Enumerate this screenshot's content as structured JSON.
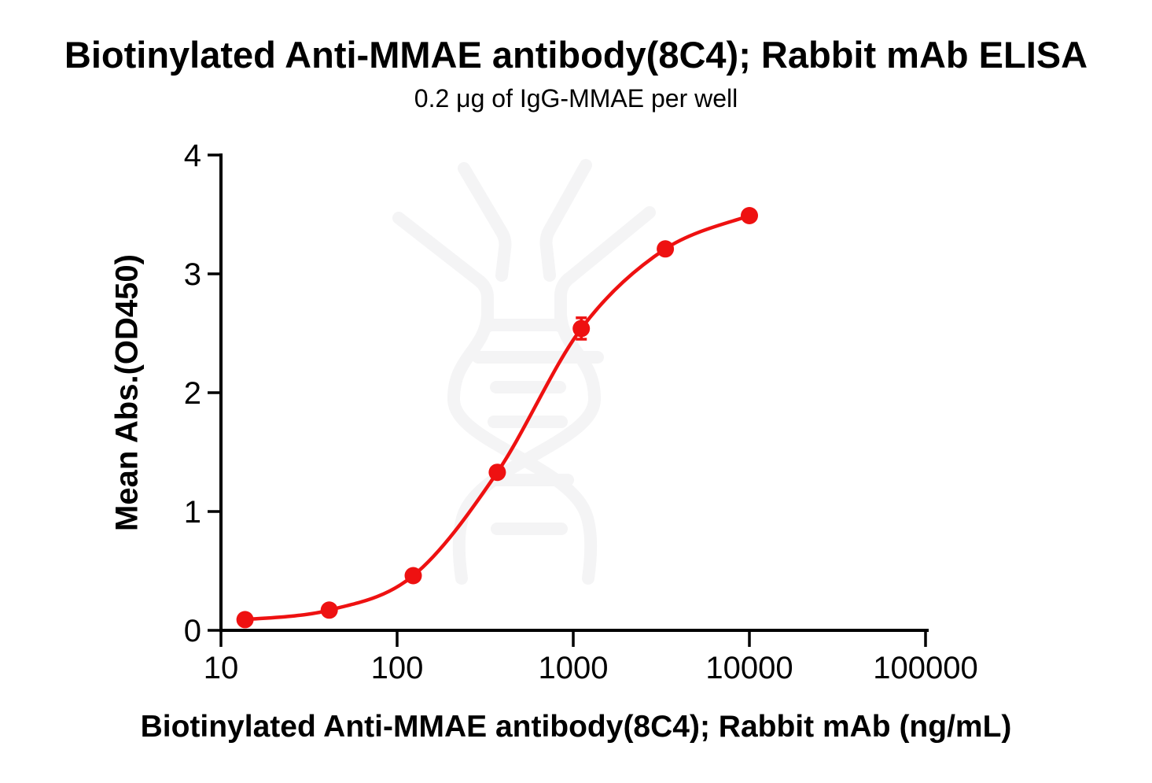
{
  "chart_data": {
    "type": "line",
    "title": "Biotinylated Anti-MMAE antibody(8C4); Rabbit mAb ELISA",
    "subtitle": "0.2 μg of IgG-MMAE per well",
    "xlabel": "Biotinylated Anti-MMAE antibody(8C4); Rabbit mAb (ng/mL)",
    "ylabel": "Mean Abs.(OD450)",
    "x_scale": "log10",
    "xlim": [
      10,
      100000
    ],
    "ylim": [
      0,
      4
    ],
    "x_ticks": [
      "10",
      "100",
      "1000",
      "10000",
      "100000"
    ],
    "y_ticks": [
      "0",
      "1",
      "2",
      "3",
      "4"
    ],
    "grid": false,
    "legend": false,
    "series": [
      {
        "name": "Biotinylated Anti-MMAE antibody(8C4); Rabbit mAb",
        "color": "#ee1111",
        "marker": "circle",
        "curve": "sigmoidal-4PL-fit",
        "points": [
          {
            "x": 13.7,
            "y": 0.09
          },
          {
            "x": 41.2,
            "y": 0.17
          },
          {
            "x": 123.5,
            "y": 0.46
          },
          {
            "x": 370.4,
            "y": 1.33
          },
          {
            "x": 1111,
            "y": 2.54,
            "sd": 0.09
          },
          {
            "x": 3333,
            "y": 3.21
          },
          {
            "x": 10000,
            "y": 3.49
          }
        ]
      }
    ]
  },
  "watermark": {
    "name": "antibody-dna-logo",
    "color": "#f4f4f5"
  }
}
